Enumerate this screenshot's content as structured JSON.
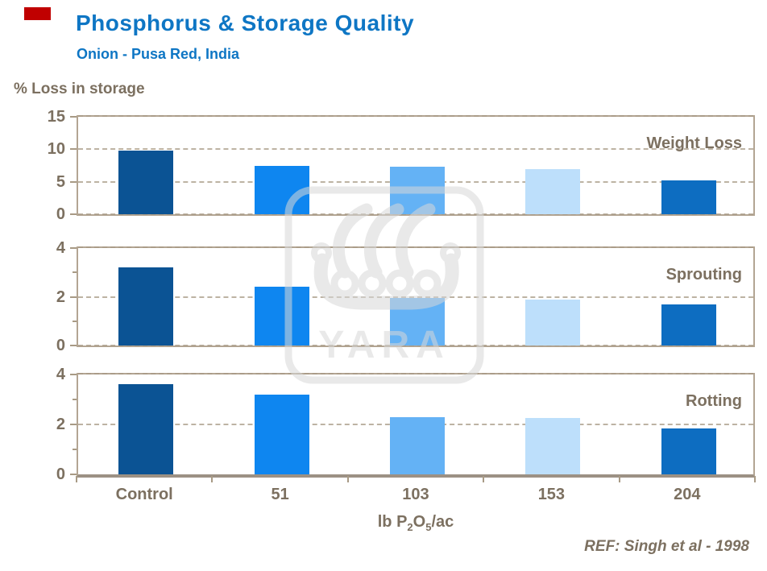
{
  "slide": {
    "title": "Phosphorus & Storage Quality",
    "subtitle": "Onion - Pusa Red, India",
    "y_axis_super_title": "% Loss in storage",
    "footer_ref": "REF: Singh et al - 1998",
    "watermark_text": "YARA",
    "colors": {
      "title_blue": "#0E76C4",
      "text_brown": "#7C7060",
      "axis_tan": "#B3A593",
      "grid_dash_tan": "#A89A85",
      "marker_red": "#C00000",
      "watermark_gray": "#D8D8D8"
    }
  },
  "chart_data": {
    "type": "bar",
    "categories": [
      "Control",
      "51",
      "103",
      "153",
      "204"
    ],
    "category_colors": [
      "#0B5394",
      "#0E86F0",
      "#64B2F5",
      "#BDDFFB",
      "#0D6DC1"
    ],
    "xlabel": "lb P2O5/ac",
    "xlabel_parts": {
      "pre": "lb P",
      "sub1": "2",
      "mid": "O",
      "sub2": "5",
      "post": "/ac"
    },
    "ylabel": "% Loss in storage",
    "grid": "horizontal dashed at major ticks",
    "legend_position": "series name inside each panel, top-right",
    "panels": [
      {
        "label": "Weight Loss",
        "ylim": [
          0,
          15
        ],
        "yticks": [
          0,
          5,
          10,
          15
        ],
        "minor_yticks": [],
        "values": [
          9.8,
          7.5,
          7.3,
          6.9,
          5.2
        ]
      },
      {
        "label": "Sprouting",
        "ylim": [
          0,
          4
        ],
        "yticks": [
          0,
          2,
          4
        ],
        "minor_yticks": [
          1,
          3
        ],
        "values": [
          3.2,
          2.4,
          1.95,
          1.9,
          1.7
        ]
      },
      {
        "label": "Rotting",
        "ylim": [
          0,
          4
        ],
        "yticks": [
          0,
          2,
          4
        ],
        "minor_yticks": [
          1,
          3
        ],
        "values": [
          3.6,
          3.2,
          2.3,
          2.25,
          1.85
        ]
      }
    ]
  }
}
